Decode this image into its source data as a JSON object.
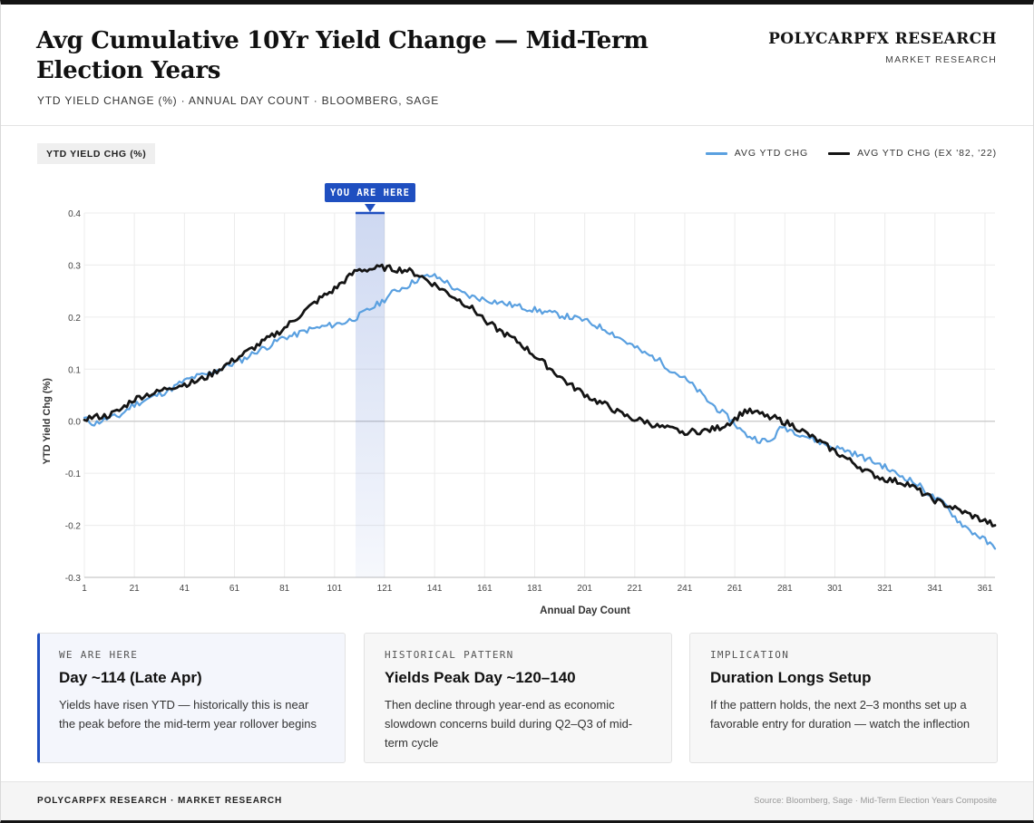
{
  "header": {
    "title": "Avg Cumulative 10Yr Yield Change — Mid-Term Election Years",
    "subtitle": "YTD YIELD CHANGE (%) · ANNUAL DAY COUNT · BLOOMBERG, SAGE",
    "brand_name": "POLYCARPFX RESEARCH",
    "brand_sub": "MARKET RESEARCH"
  },
  "chart_badge": "YTD YIELD CHG (%)",
  "colors": {
    "blue": "#5aa0e0",
    "black": "#141414",
    "highlight": "#1f4fc0",
    "grid": "#ececec"
  },
  "chart_data": {
    "type": "line",
    "title": "Avg Cumulative 10Yr Yield Change — Mid-Term Election Years",
    "xlabel": "Annual Day Count",
    "ylabel": "YTD Yield Chg (%)",
    "xlim": [
      1,
      365
    ],
    "ylim": [
      -0.3,
      0.4
    ],
    "x_ticks": [
      1,
      21,
      41,
      61,
      81,
      101,
      121,
      141,
      161,
      181,
      201,
      221,
      241,
      261,
      281,
      301,
      321,
      341,
      361
    ],
    "y_ticks": [
      0.4,
      0.3,
      0.2,
      0.1,
      0.0,
      -0.1,
      -0.2,
      -0.3
    ],
    "y_tick_labels": [
      "0.4",
      "0.3",
      "0.2",
      "0.1",
      "0.0",
      "-0.1",
      "-0.2",
      "-0.3"
    ],
    "grid": true,
    "legend_position": "top-right",
    "annotation": {
      "label": "YOU ARE HERE",
      "x_start": 110,
      "x_end": 121
    },
    "series": [
      {
        "name": "AVG YTD CHG",
        "color": "#5aa0e0",
        "x": [
          1,
          5,
          10,
          15,
          20,
          25,
          30,
          35,
          40,
          45,
          50,
          55,
          60,
          65,
          70,
          75,
          80,
          85,
          90,
          95,
          100,
          105,
          110,
          115,
          120,
          125,
          130,
          135,
          140,
          145,
          150,
          155,
          160,
          165,
          170,
          175,
          180,
          185,
          190,
          195,
          200,
          205,
          210,
          215,
          220,
          225,
          230,
          235,
          240,
          245,
          250,
          255,
          260,
          265,
          270,
          275,
          280,
          285,
          290,
          295,
          300,
          305,
          310,
          315,
          320,
          325,
          330,
          335,
          340,
          345,
          350,
          355,
          360,
          365
        ],
        "values": [
          0.005,
          -0.005,
          0.005,
          0.01,
          0.03,
          0.04,
          0.05,
          0.06,
          0.075,
          0.085,
          0.09,
          0.1,
          0.11,
          0.12,
          0.135,
          0.145,
          0.16,
          0.165,
          0.175,
          0.18,
          0.185,
          0.19,
          0.2,
          0.215,
          0.23,
          0.25,
          0.26,
          0.275,
          0.28,
          0.27,
          0.25,
          0.24,
          0.235,
          0.23,
          0.225,
          0.22,
          0.215,
          0.21,
          0.205,
          0.2,
          0.195,
          0.185,
          0.175,
          0.16,
          0.145,
          0.13,
          0.12,
          0.1,
          0.085,
          0.065,
          0.04,
          0.02,
          0.0,
          -0.025,
          -0.035,
          -0.04,
          -0.01,
          -0.02,
          -0.03,
          -0.04,
          -0.05,
          -0.055,
          -0.065,
          -0.075,
          -0.085,
          -0.1,
          -0.11,
          -0.125,
          -0.145,
          -0.16,
          -0.19,
          -0.21,
          -0.225,
          -0.245
        ]
      },
      {
        "name": "AVG YTD CHG (EX '82, '22)",
        "color": "#141414",
        "x": [
          1,
          5,
          10,
          15,
          20,
          25,
          30,
          35,
          40,
          45,
          50,
          55,
          60,
          65,
          70,
          75,
          80,
          85,
          90,
          95,
          100,
          105,
          110,
          115,
          120,
          125,
          130,
          135,
          140,
          145,
          150,
          155,
          160,
          165,
          170,
          175,
          180,
          185,
          190,
          195,
          200,
          205,
          210,
          215,
          220,
          225,
          230,
          235,
          240,
          245,
          250,
          255,
          260,
          265,
          270,
          275,
          280,
          285,
          290,
          295,
          300,
          305,
          310,
          315,
          320,
          325,
          330,
          335,
          340,
          345,
          350,
          355,
          360,
          365
        ],
        "values": [
          0.005,
          0.008,
          0.01,
          0.02,
          0.04,
          0.05,
          0.055,
          0.065,
          0.07,
          0.075,
          0.085,
          0.1,
          0.115,
          0.13,
          0.145,
          0.16,
          0.175,
          0.195,
          0.215,
          0.235,
          0.25,
          0.27,
          0.29,
          0.292,
          0.295,
          0.292,
          0.29,
          0.28,
          0.265,
          0.25,
          0.235,
          0.22,
          0.2,
          0.18,
          0.165,
          0.15,
          0.13,
          0.11,
          0.09,
          0.07,
          0.055,
          0.04,
          0.03,
          0.015,
          0.005,
          0.0,
          -0.01,
          -0.015,
          -0.02,
          -0.02,
          -0.018,
          -0.012,
          0.0,
          0.02,
          0.015,
          0.01,
          0.0,
          -0.01,
          -0.025,
          -0.04,
          -0.055,
          -0.07,
          -0.085,
          -0.1,
          -0.11,
          -0.115,
          -0.12,
          -0.135,
          -0.15,
          -0.16,
          -0.17,
          -0.18,
          -0.19,
          -0.2
        ]
      }
    ]
  },
  "cards": [
    {
      "kicker": "WE ARE HERE",
      "heading": "Day ~114 (Late Apr)",
      "body": "Yields have risen YTD — historically this is near the peak before the mid-term year rollover begins"
    },
    {
      "kicker": "HISTORICAL PATTERN",
      "heading": "Yields Peak Day ~120–140",
      "body": "Then decline through year-end as economic slowdown concerns build during Q2–Q3 of mid-term cycle"
    },
    {
      "kicker": "IMPLICATION",
      "heading": "Duration Longs Setup",
      "body": "If the pattern holds, the next 2–3 months set up a favorable entry for duration — watch the inflection"
    }
  ],
  "footer": {
    "left": "POLYCARPFX RESEARCH · MARKET RESEARCH",
    "right": "Source: Bloomberg, Sage · Mid-Term Election Years Composite"
  }
}
